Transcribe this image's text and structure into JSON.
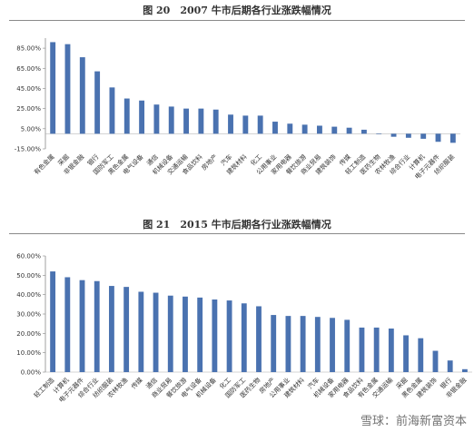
{
  "chart_data": [
    {
      "type": "bar",
      "title": "图 20　2007 牛市后期各行业涨跌幅情况",
      "categories": [
        "有色金属",
        "采掘",
        "非银金融",
        "银行",
        "国防军工",
        "黑色金属",
        "电气设备",
        "通信",
        "机械设备",
        "交通运输",
        "食品饮料",
        "房地产",
        "汽车",
        "建筑材料",
        "化工",
        "公用事业",
        "家用电器",
        "餐饮旅游",
        "商业贸易",
        "建筑装饰",
        "传媒",
        "轻工制造",
        "医药生物",
        "农林牧渔",
        "综合行业",
        "计算机",
        "电子元器件",
        "纺织服装"
      ],
      "values": [
        91,
        89,
        76,
        62,
        46,
        35,
        33,
        29,
        27,
        25,
        25,
        24,
        19,
        18,
        18,
        12,
        10,
        9,
        8,
        7,
        6,
        4,
        0,
        -3,
        -4,
        -5,
        -8,
        -9
      ],
      "yticks": [
        "85.00%",
        "65.00%",
        "45.00%",
        "25.00%",
        "5.00%",
        "-15.00%"
      ],
      "ylim": [
        -15,
        95
      ],
      "bar_color": "#4a72b0",
      "grid": false
    },
    {
      "type": "bar",
      "title": "图 21　2015 牛市后期各行业涨跌幅情况",
      "categories": [
        "轻工制造",
        "计算机",
        "电子元器件",
        "综合行业",
        "纺织服装",
        "农林牧渔",
        "传媒",
        "通信",
        "商业贸易",
        "餐饮旅游",
        "电气设备",
        "机械设备",
        "化工",
        "国防军工",
        "医药生物",
        "房地产",
        "公用事业",
        "建筑材料",
        "汽车",
        "机械设备",
        "家用电器",
        "食品饮料",
        "有色金属",
        "交通运输",
        "采掘",
        "黑色金属",
        "建筑装饰",
        "银行",
        "非银金融"
      ],
      "values": [
        52,
        49,
        47.5,
        47,
        44.5,
        44,
        41.5,
        41,
        39.5,
        39,
        38.5,
        37.5,
        37,
        35.5,
        34,
        29.5,
        29,
        29,
        28.5,
        28,
        27,
        23,
        23,
        22.5,
        19,
        17.5,
        11,
        6,
        1.5
      ],
      "yticks": [
        "60.00%",
        "50.00%",
        "40.00%",
        "30.00%",
        "20.00%",
        "10.00%",
        "0.00%"
      ],
      "ylim": [
        0,
        60
      ],
      "bar_color": "#4a72b0",
      "grid": false
    }
  ],
  "watermark": "雪球：前海新富资本"
}
